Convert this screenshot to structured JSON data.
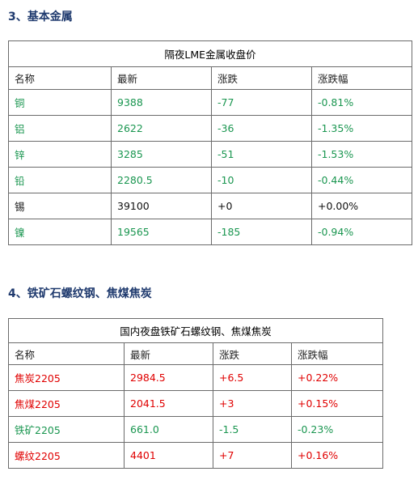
{
  "sections": [
    {
      "heading": "3、基本金属",
      "table": {
        "title": "隔夜LME金属收盘价",
        "header": [
          "名称",
          "最新",
          "涨跌",
          "涨跌幅"
        ],
        "rows": [
          {
            "color": "#1a9650",
            "cells": [
              "铜",
              "9388",
              "-77",
              "-0.81%"
            ]
          },
          {
            "color": "#1a9650",
            "cells": [
              "铝",
              "2622",
              "-36",
              "-1.35%"
            ]
          },
          {
            "color": "#1a9650",
            "cells": [
              "锌",
              "3285",
              "-51",
              "-1.53%"
            ]
          },
          {
            "color": "#1a9650",
            "cells": [
              "铅",
              "2280.5",
              "-10",
              "-0.44%"
            ]
          },
          {
            "color": "#111111",
            "cells": [
              "锡",
              "39100",
              "+0",
              "+0.00%"
            ]
          },
          {
            "color": "#1a9650",
            "cells": [
              "镍",
              "19565",
              "-185",
              "-0.94%"
            ]
          }
        ]
      }
    },
    {
      "heading": "4、铁矿石螺纹钢、焦煤焦炭",
      "table": {
        "title": "国内夜盘铁矿石螺纹钢、焦煤焦炭",
        "header": [
          "名称",
          "最新",
          "涨跌",
          "涨跌幅"
        ],
        "rows": [
          {
            "color": "#e00000",
            "cells": [
              "焦炭2205",
              "2984.5",
              "+6.5",
              "+0.22%"
            ]
          },
          {
            "color": "#e00000",
            "cells": [
              "焦煤2205",
              "2041.5",
              "+3",
              "+0.15%"
            ]
          },
          {
            "color": "#1a9650",
            "cells": [
              "铁矿2205",
              "661.0",
              "-1.5",
              "-0.23%"
            ]
          },
          {
            "color": "#e00000",
            "cells": [
              "螺纹2205",
              "4401",
              "+7",
              "+0.16%"
            ]
          }
        ]
      }
    }
  ]
}
